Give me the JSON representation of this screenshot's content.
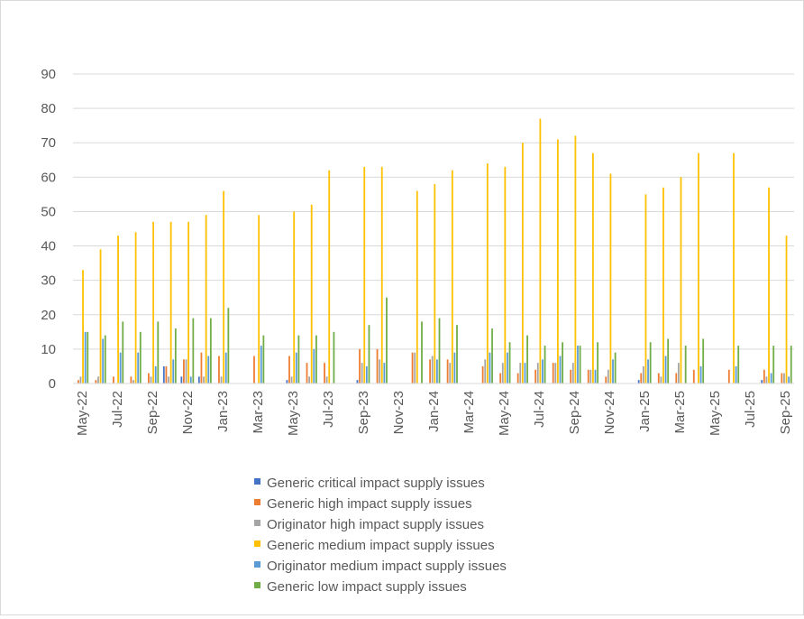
{
  "chart_data": {
    "type": "bar",
    "title": "",
    "xlabel": "",
    "ylabel": "",
    "ylim": [
      0,
      90
    ],
    "yticks": [
      0,
      10,
      20,
      30,
      40,
      50,
      60,
      70,
      80,
      90
    ],
    "grid": true,
    "legend_position": "bottom",
    "categories": [
      "May-22",
      "Jun-22",
      "Jul-22",
      "Aug-22",
      "Sep-22",
      "Oct-22",
      "Nov-22",
      "Dec-22",
      "Jan-23",
      "Feb-23",
      "Mar-23",
      "Apr-23",
      "May-23",
      "Jun-23",
      "Jul-23",
      "Aug-23",
      "Sep-23",
      "Oct-23",
      "Nov-23",
      "Dec-23",
      "Jan-24",
      "Feb-24",
      "Mar-24",
      "Apr-24",
      "May-24",
      "Jun-24",
      "Jul-24",
      "Aug-24",
      "Sep-24",
      "Oct-24",
      "Nov-24",
      "Dec-24",
      "Jan-25",
      "Feb-25",
      "Mar-25",
      "Apr-25",
      "May-25",
      "Jun-25",
      "Jul-25",
      "Aug-25",
      "Sep-25"
    ],
    "tick_labels": [
      "May-22",
      "Jul-22",
      "Sep-22",
      "Nov-22",
      "Jan-23",
      "Mar-23",
      "May-23",
      "Jul-23",
      "Sep-23",
      "Nov-23",
      "Jan-24",
      "Mar-24",
      "May-24",
      "Jul-24",
      "Sep-24",
      "Nov-24",
      "Jan-25",
      "Mar-25",
      "May-25",
      "Jul-25",
      "Sep-25"
    ],
    "series": [
      {
        "name": "Generic critical impact supply issues",
        "color": "#4472c4",
        "values": [
          0,
          0,
          0,
          0,
          0,
          5,
          2,
          2,
          0,
          0,
          0,
          0,
          1,
          0,
          0,
          0,
          1,
          0,
          0,
          0,
          0,
          0,
          0,
          0,
          0,
          0,
          0,
          0,
          0,
          0,
          0,
          0,
          1,
          0,
          0,
          0,
          0,
          0,
          0,
          1,
          0
        ]
      },
      {
        "name": "Generic high impact supply issues",
        "color": "#ed7d31",
        "values": [
          1,
          1,
          2,
          2,
          3,
          5,
          7,
          9,
          8,
          0,
          8,
          0,
          8,
          6,
          6,
          0,
          10,
          10,
          0,
          9,
          7,
          7,
          0,
          5,
          3,
          3,
          4,
          6,
          4,
          4,
          2,
          0,
          3,
          3,
          3,
          4,
          0,
          4,
          0,
          4,
          3
        ]
      },
      {
        "name": "Originator high impact supply issues",
        "color": "#a5a5a5",
        "values": [
          2,
          2,
          0,
          1,
          2,
          2,
          7,
          2,
          2,
          0,
          0,
          0,
          2,
          2,
          2,
          0,
          6,
          7,
          0,
          9,
          8,
          6,
          0,
          7,
          6,
          6,
          6,
          6,
          6,
          4,
          4,
          0,
          5,
          2,
          6,
          0,
          0,
          0,
          0,
          2,
          3
        ]
      },
      {
        "name": "Generic medium impact supply issues",
        "color": "#ffc000",
        "values": [
          33,
          39,
          43,
          44,
          47,
          47,
          47,
          49,
          56,
          0,
          49,
          0,
          50,
          52,
          62,
          0,
          63,
          63,
          0,
          56,
          58,
          62,
          0,
          64,
          63,
          70,
          77,
          71,
          72,
          67,
          61,
          0,
          55,
          57,
          60,
          67,
          0,
          67,
          0,
          57,
          43
        ]
      },
      {
        "name": "Originator medium impact supply issues",
        "color": "#5b9bd5",
        "values": [
          15,
          13,
          9,
          9,
          5,
          7,
          2,
          8,
          9,
          0,
          11,
          0,
          9,
          10,
          0,
          0,
          5,
          6,
          0,
          0,
          7,
          9,
          0,
          9,
          9,
          6,
          7,
          8,
          11,
          4,
          7,
          0,
          7,
          8,
          0,
          5,
          0,
          5,
          0,
          3,
          2
        ]
      },
      {
        "name": "Generic low impact supply issues",
        "color": "#70ad47",
        "values": [
          15,
          14,
          18,
          15,
          18,
          16,
          19,
          19,
          22,
          0,
          14,
          0,
          14,
          14,
          15,
          0,
          17,
          25,
          0,
          18,
          19,
          17,
          0,
          16,
          12,
          14,
          11,
          12,
          11,
          12,
          9,
          0,
          12,
          13,
          11,
          13,
          0,
          11,
          0,
          11,
          11
        ]
      }
    ]
  }
}
